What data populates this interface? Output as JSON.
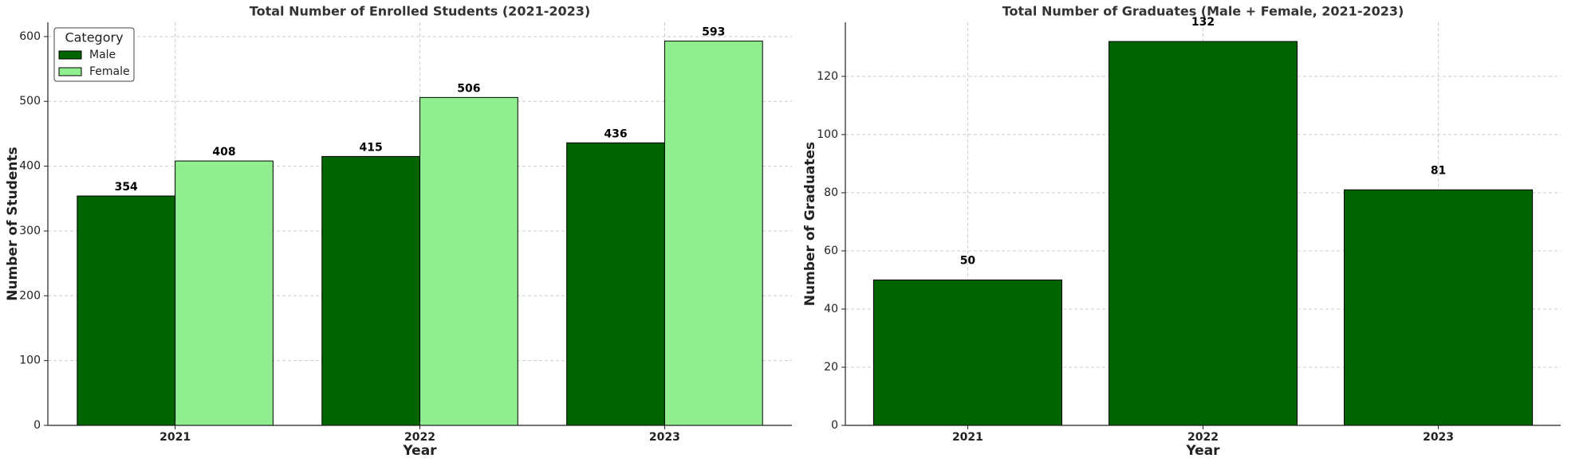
{
  "chart_data": [
    {
      "type": "bar",
      "title": "Total Number of Enrolled Students (2021-2023)",
      "x_label": "Year",
      "y_label": "Number of Students",
      "categories": [
        "2021",
        "2022",
        "2023"
      ],
      "series": [
        {
          "name": "Male",
          "color": "#006400",
          "values": [
            354,
            415,
            436
          ]
        },
        {
          "name": "Female",
          "color": "#90ee90",
          "values": [
            408,
            506,
            593
          ]
        }
      ],
      "legend_title": "Category",
      "legend": "upper left",
      "ylim": [
        0,
        622
      ],
      "yticks": [
        0,
        100,
        200,
        300,
        400,
        500,
        600
      ],
      "grid": true
    },
    {
      "type": "bar",
      "title": "Total Number of Graduates (Male + Female, 2021-2023)",
      "x_label": "Year",
      "y_label": "Number of Graduates",
      "categories": [
        "2021",
        "2022",
        "2023"
      ],
      "values": [
        50,
        132,
        81
      ],
      "color": "#006400",
      "ylim": [
        0,
        138.6
      ],
      "yticks": [
        0,
        20,
        40,
        60,
        80,
        100,
        120
      ],
      "grid": true
    }
  ]
}
